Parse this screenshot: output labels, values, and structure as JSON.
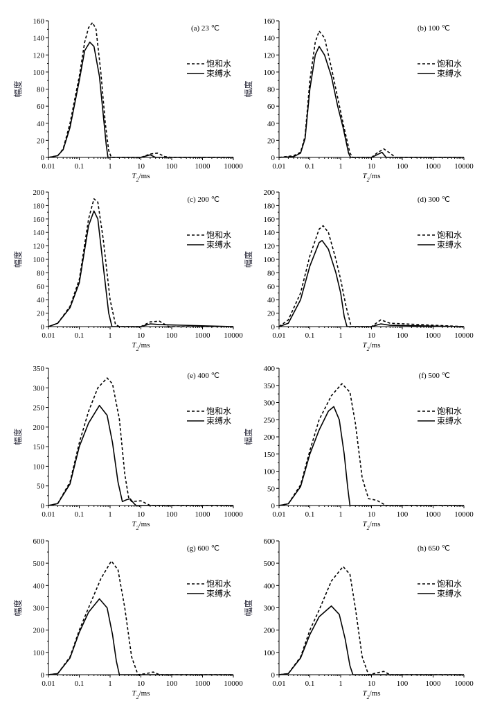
{
  "chart_data": [
    {
      "type": "line",
      "title": "(a) 23 ℃",
      "xlabel": "T2/ms",
      "ylabel": "幅度",
      "xscale": "log",
      "xlim": [
        0.01,
        10000
      ],
      "ylim": [
        0,
        160
      ],
      "yticks": [
        0,
        20,
        40,
        60,
        80,
        100,
        120,
        140,
        160
      ],
      "series": [
        {
          "name": "饱和水",
          "style": "dashed",
          "x": [
            0.01,
            0.02,
            0.03,
            0.05,
            0.1,
            0.15,
            0.2,
            0.27,
            0.35,
            0.5,
            0.7,
            0.9,
            1.1,
            10,
            20,
            35,
            60,
            100,
            10000
          ],
          "y": [
            0,
            2,
            10,
            40,
            95,
            135,
            152,
            158,
            150,
            100,
            40,
            8,
            0,
            0,
            4,
            5,
            1,
            0,
            0
          ]
        },
        {
          "name": "束缚水",
          "style": "solid",
          "x": [
            0.01,
            0.02,
            0.03,
            0.05,
            0.1,
            0.15,
            0.22,
            0.3,
            0.45,
            0.6,
            0.75,
            0.85,
            10,
            20,
            30,
            10000
          ],
          "y": [
            0,
            2,
            9,
            35,
            90,
            125,
            135,
            130,
            95,
            50,
            15,
            0,
            0,
            3,
            0,
            0
          ]
        }
      ]
    },
    {
      "type": "line",
      "title": "(b) 100 ℃",
      "xlabel": "T2/ms",
      "ylabel": "幅度",
      "xscale": "log",
      "xlim": [
        0.01,
        10000
      ],
      "ylim": [
        0,
        160
      ],
      "yticks": [
        0,
        20,
        40,
        60,
        80,
        100,
        120,
        140,
        160
      ],
      "series": [
        {
          "name": "饱和水",
          "style": "dashed",
          "x": [
            0.01,
            0.03,
            0.05,
            0.07,
            0.1,
            0.15,
            0.2,
            0.3,
            0.5,
            0.8,
            1.2,
            2,
            2.5,
            10,
            15,
            25,
            40,
            60,
            10000
          ],
          "y": [
            0,
            2,
            6,
            25,
            90,
            135,
            148,
            140,
            105,
            70,
            40,
            5,
            0,
            0,
            5,
            10,
            5,
            0,
            0
          ]
        },
        {
          "name": "束缚水",
          "style": "solid",
          "x": [
            0.01,
            0.03,
            0.05,
            0.07,
            0.1,
            0.15,
            0.2,
            0.3,
            0.5,
            0.8,
            1.2,
            1.8,
            2.1,
            10,
            15,
            22,
            30,
            10000
          ],
          "y": [
            0,
            1,
            5,
            22,
            80,
            120,
            130,
            120,
            95,
            60,
            35,
            5,
            0,
            0,
            3,
            6,
            0,
            0
          ]
        }
      ]
    },
    {
      "type": "line",
      "title": "(c) 200 ℃",
      "xlabel": "T2/ms",
      "ylabel": "幅度",
      "xscale": "log",
      "xlim": [
        0.01,
        10000
      ],
      "ylim": [
        0,
        200
      ],
      "yticks": [
        0,
        20,
        40,
        60,
        80,
        100,
        120,
        140,
        160,
        180,
        200
      ],
      "series": [
        {
          "name": "饱和水",
          "style": "dashed",
          "x": [
            0.01,
            0.02,
            0.05,
            0.1,
            0.2,
            0.3,
            0.4,
            0.6,
            1,
            1.5,
            2,
            10,
            20,
            40,
            80,
            10000
          ],
          "y": [
            0,
            5,
            30,
            70,
            160,
            190,
            185,
            130,
            40,
            3,
            0,
            0,
            7,
            8,
            0,
            0
          ]
        },
        {
          "name": "束缚水",
          "style": "solid",
          "x": [
            0.01,
            0.02,
            0.05,
            0.1,
            0.2,
            0.3,
            0.4,
            0.6,
            0.9,
            1.15,
            10,
            20,
            40,
            10000
          ],
          "y": [
            0,
            5,
            28,
            65,
            150,
            172,
            160,
            90,
            20,
            0,
            0,
            4,
            3,
            0
          ]
        }
      ]
    },
    {
      "type": "line",
      "title": "(d) 300 ℃",
      "xlabel": "T2/ms",
      "ylabel": "幅度",
      "xscale": "log",
      "xlim": [
        0.01,
        10000
      ],
      "ylim": [
        0,
        200
      ],
      "yticks": [
        0,
        20,
        40,
        60,
        80,
        100,
        120,
        140,
        160,
        180,
        200
      ],
      "series": [
        {
          "name": "饱和水",
          "style": "dashed",
          "x": [
            0.01,
            0.02,
            0.05,
            0.1,
            0.2,
            0.27,
            0.4,
            0.7,
            1,
            1.5,
            2.2,
            10,
            20,
            40,
            10000
          ],
          "y": [
            0,
            10,
            50,
            105,
            145,
            150,
            140,
            100,
            70,
            30,
            0,
            0,
            10,
            5,
            0
          ]
        },
        {
          "name": "束缚水",
          "style": "solid",
          "x": [
            0.01,
            0.02,
            0.05,
            0.1,
            0.2,
            0.25,
            0.4,
            0.7,
            1,
            1.3,
            1.6,
            10,
            20,
            40,
            10000
          ],
          "y": [
            0,
            5,
            40,
            90,
            125,
            128,
            115,
            80,
            50,
            15,
            0,
            0,
            4,
            2,
            0
          ]
        }
      ]
    },
    {
      "type": "line",
      "title": "(e) 400 ℃",
      "xlabel": "T2/ms",
      "ylabel": "幅度",
      "xscale": "log",
      "xlim": [
        0.01,
        10000
      ],
      "ylim": [
        0,
        350
      ],
      "yticks": [
        0,
        50,
        100,
        150,
        200,
        250,
        300,
        350
      ],
      "series": [
        {
          "name": "饱和水",
          "style": "dashed",
          "x": [
            0.01,
            0.02,
            0.05,
            0.1,
            0.2,
            0.4,
            0.8,
            1.2,
            2,
            3,
            4,
            5,
            10,
            20,
            10000
          ],
          "y": [
            0,
            5,
            60,
            160,
            240,
            300,
            325,
            310,
            220,
            80,
            20,
            10,
            12,
            0,
            0
          ]
        },
        {
          "name": "束缚水",
          "style": "solid",
          "x": [
            0.01,
            0.02,
            0.05,
            0.1,
            0.2,
            0.45,
            0.8,
            1.2,
            1.8,
            2.5,
            3.5,
            4.5,
            6,
            7,
            10000
          ],
          "y": [
            0,
            5,
            55,
            150,
            210,
            255,
            230,
            160,
            60,
            10,
            15,
            17,
            5,
            0,
            0
          ]
        }
      ]
    },
    {
      "type": "line",
      "title": "(f) 500 ℃",
      "xlabel": "T2/ms",
      "ylabel": "幅度",
      "xscale": "log",
      "xlim": [
        0.01,
        10000
      ],
      "ylim": [
        0,
        400
      ],
      "yticks": [
        0,
        50,
        100,
        150,
        200,
        250,
        300,
        350,
        400
      ],
      "series": [
        {
          "name": "饱和水",
          "style": "dashed",
          "x": [
            0.01,
            0.02,
            0.05,
            0.1,
            0.2,
            0.5,
            1.1,
            2,
            3,
            5,
            8,
            15,
            30,
            10000
          ],
          "y": [
            0,
            5,
            60,
            160,
            250,
            320,
            355,
            330,
            240,
            80,
            20,
            15,
            0,
            0
          ]
        },
        {
          "name": "束缚水",
          "style": "solid",
          "x": [
            0.01,
            0.02,
            0.05,
            0.1,
            0.2,
            0.4,
            0.6,
            0.9,
            1.3,
            1.7,
            2,
            10000
          ],
          "y": [
            0,
            5,
            55,
            150,
            220,
            275,
            288,
            250,
            150,
            50,
            0,
            0
          ]
        }
      ]
    },
    {
      "type": "line",
      "title": "(g) 600 ℃",
      "xlabel": "T2/ms",
      "ylabel": "幅度",
      "xscale": "log",
      "xlim": [
        0.01,
        10000
      ],
      "ylim": [
        0,
        600
      ],
      "yticks": [
        0,
        100,
        200,
        300,
        400,
        500,
        600
      ],
      "series": [
        {
          "name": "饱和水",
          "style": "dashed",
          "x": [
            0.01,
            0.02,
            0.05,
            0.1,
            0.2,
            0.5,
            1.1,
            1.8,
            3,
            5,
            8,
            15,
            25,
            40,
            10000
          ],
          "y": [
            0,
            5,
            80,
            200,
            300,
            430,
            510,
            470,
            300,
            80,
            0,
            5,
            12,
            0,
            0
          ]
        },
        {
          "name": "束缚水",
          "style": "solid",
          "x": [
            0.01,
            0.02,
            0.05,
            0.1,
            0.2,
            0.45,
            0.8,
            1.2,
            1.6,
            2,
            10000
          ],
          "y": [
            0,
            5,
            75,
            190,
            280,
            340,
            300,
            180,
            60,
            0,
            0
          ]
        }
      ]
    },
    {
      "type": "line",
      "title": "(h) 650 ℃",
      "xlabel": "T2/ms",
      "ylabel": "幅度",
      "xscale": "log",
      "xlim": [
        0.01,
        10000
      ],
      "ylim": [
        0,
        600
      ],
      "yticks": [
        0,
        100,
        200,
        300,
        400,
        500,
        600
      ],
      "series": [
        {
          "name": "饱和水",
          "style": "dashed",
          "x": [
            0.01,
            0.02,
            0.05,
            0.1,
            0.2,
            0.5,
            1.2,
            2,
            3,
            5,
            8,
            15,
            25,
            40,
            10000
          ],
          "y": [
            0,
            5,
            80,
            200,
            290,
            420,
            485,
            450,
            300,
            80,
            0,
            8,
            15,
            0,
            0
          ]
        },
        {
          "name": "束缚水",
          "style": "solid",
          "x": [
            0.01,
            0.02,
            0.05,
            0.1,
            0.2,
            0.5,
            0.9,
            1.4,
            2,
            2.5,
            10000
          ],
          "y": [
            0,
            5,
            75,
            180,
            260,
            308,
            270,
            160,
            40,
            0,
            0
          ]
        }
      ]
    }
  ]
}
